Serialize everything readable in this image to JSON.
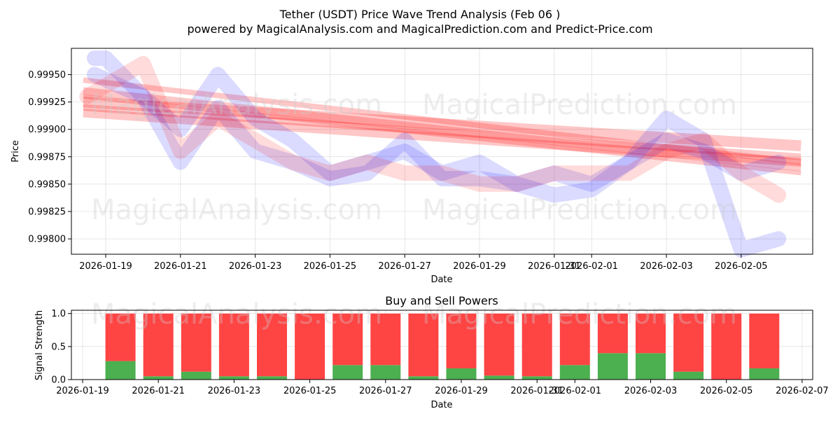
{
  "header": {
    "title": "Tether (USDT) Price Wave Trend Analysis (Feb 06 )",
    "subtitle": "powered by MagicalAnalysis.com and MagicalPrediction.com and Predict-Price.com"
  },
  "watermarks": [
    "MagicalAnalysis.com",
    "MagicalPrediction.com"
  ],
  "colors": {
    "bear_band": "#ff0000",
    "bull_band": "#0000ff",
    "buy": "#4caf50",
    "sell": "#ff4444"
  },
  "chart_data": [
    {
      "type": "area",
      "title": "",
      "xlabel": "Date",
      "ylabel": "Price",
      "ylim": [
        0.99786,
        0.99974
      ],
      "xlim_days": [
        -0.5,
        18.75
      ],
      "x_ticks": [
        "2026-01-19",
        "2026-01-21",
        "2026-01-23",
        "2026-01-25",
        "2026-01-27",
        "2026-01-29",
        "2026-01-31",
        "2026-02-01",
        "2026-02-03",
        "2026-02-05"
      ],
      "x_tick_days": [
        0,
        2,
        4,
        6,
        8,
        10,
        12,
        13,
        15,
        17
      ],
      "y_ticks": [
        "0.99800",
        "0.99825",
        "0.99850",
        "0.99875",
        "0.99900",
        "0.99925",
        "0.99950"
      ],
      "y_tick_values": [
        0.998,
        0.99825,
        0.9985,
        0.99875,
        0.999,
        0.99925,
        0.9995
      ],
      "grid": true,
      "series": [
        {
          "name": "price-wave-1",
          "color": "blue",
          "x": [
            -0.3,
            0,
            1,
            2,
            3,
            4,
            5,
            6,
            7,
            8,
            9,
            10,
            11,
            12,
            13,
            14,
            15,
            16,
            17,
            18
          ],
          "y": [
            0.99965,
            0.99965,
            0.9993,
            0.9987,
            0.9992,
            0.9988,
            0.9987,
            0.99855,
            0.9986,
            0.9989,
            0.99855,
            0.99855,
            0.9985,
            0.9984,
            0.99845,
            0.9987,
            0.9991,
            0.9989,
            0.9979,
            0.998
          ]
        },
        {
          "name": "price-wave-2",
          "color": "blue",
          "x": [
            -0.3,
            1,
            2,
            3,
            4,
            5,
            6,
            7,
            8,
            9,
            10,
            11,
            12,
            13,
            14,
            15,
            16,
            17,
            18
          ],
          "y": [
            0.9995,
            0.9993,
            0.999,
            0.9995,
            0.9991,
            0.9989,
            0.9986,
            0.9987,
            0.9988,
            0.9986,
            0.9987,
            0.9985,
            0.9986,
            0.9985,
            0.9987,
            0.9989,
            0.9988,
            0.9986,
            0.9987
          ]
        },
        {
          "name": "price-wave-3",
          "color": "red",
          "x": [
            -0.5,
            1,
            2,
            3,
            4,
            5,
            6,
            7,
            8,
            9,
            10,
            11,
            12,
            13,
            14,
            15,
            16,
            17,
            18
          ],
          "y": [
            0.9993,
            0.9996,
            0.9988,
            0.9991,
            0.9989,
            0.9987,
            0.9986,
            0.9987,
            0.9986,
            0.9986,
            0.9985,
            0.9985,
            0.9986,
            0.9986,
            0.9986,
            0.9988,
            0.9989,
            0.9986,
            0.9984
          ]
        }
      ],
      "trend_bands": [
        {
          "name": "trend-band-1",
          "start": [
            -0.6,
            0.99925
          ],
          "end": [
            18.6,
            0.99885
          ],
          "width": 0.0001
        },
        {
          "name": "trend-band-2",
          "start": [
            -0.6,
            0.99945
          ],
          "end": [
            18.6,
            0.9987
          ],
          "width": 5e-05
        },
        {
          "name": "trend-band-3",
          "start": [
            -0.6,
            0.99935
          ],
          "end": [
            18.6,
            0.99865
          ],
          "width": 7e-05
        },
        {
          "name": "trend-band-4",
          "start": [
            -0.6,
            0.9992
          ],
          "end": [
            18.6,
            0.99875
          ],
          "width": 6e-05
        },
        {
          "name": "trend-band-5",
          "start": [
            -0.6,
            0.99915
          ],
          "end": [
            18.6,
            0.9987
          ],
          "width": 8e-05
        },
        {
          "name": "trend-band-6",
          "start": [
            -0.6,
            0.9993
          ],
          "end": [
            18.6,
            0.9986
          ],
          "width": 4e-05
        }
      ]
    },
    {
      "type": "bar",
      "title": "Buy and Sell Powers",
      "xlabel": "Date",
      "ylabel": "Signal Strength",
      "ylim": [
        0,
        1.05
      ],
      "x_ticks": [
        "2026-01-19",
        "2026-01-21",
        "2026-01-23",
        "2026-01-25",
        "2026-01-27",
        "2026-01-29",
        "2026-01-31",
        "2026-02-01",
        "2026-02-03",
        "2026-02-05",
        "2026-02-07"
      ],
      "x_tick_days": [
        0,
        2,
        4,
        6,
        8,
        10,
        12,
        13,
        15,
        17,
        19
      ],
      "y_ticks": [
        "0.0",
        "0.5",
        "1.0"
      ],
      "y_tick_values": [
        0,
        0.5,
        1.0
      ],
      "categories": [
        "2026-01-20",
        "2026-01-21",
        "2026-01-22",
        "2026-01-23",
        "2026-01-24",
        "2026-01-25",
        "2026-01-26",
        "2026-01-27",
        "2026-01-28",
        "2026-01-29",
        "2026-01-30",
        "2026-01-31",
        "2026-02-01",
        "2026-02-02",
        "2026-02-03",
        "2026-02-04",
        "2026-02-05",
        "2026-02-06"
      ],
      "series": [
        {
          "name": "Buy",
          "color": "green",
          "values": [
            0.28,
            0.05,
            0.12,
            0.05,
            0.05,
            0.0,
            0.22,
            0.22,
            0.05,
            0.17,
            0.06,
            0.05,
            0.22,
            0.4,
            0.4,
            0.12,
            0.0,
            0.17
          ]
        },
        {
          "name": "Sell",
          "color": "red",
          "values": [
            0.72,
            0.95,
            0.88,
            0.95,
            0.95,
            1.0,
            0.78,
            0.78,
            0.95,
            0.83,
            0.94,
            0.95,
            0.78,
            0.6,
            0.6,
            0.88,
            1.0,
            0.83
          ]
        }
      ]
    }
  ]
}
